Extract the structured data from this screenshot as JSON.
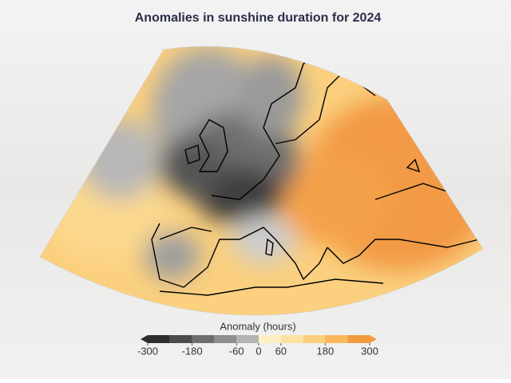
{
  "title": "Anomalies in sunshine duration for 2024",
  "legend": {
    "title": "Anomaly (hours)",
    "levels": [
      -300,
      -240,
      -180,
      -120,
      -60,
      0,
      60,
      120,
      180,
      240,
      300
    ],
    "colors": [
      "#2e2e2e",
      "#4d4d4d",
      "#6e6e6e",
      "#8f8f8f",
      "#b3b3b3",
      "#fdf0c4",
      "#fde2a0",
      "#fccf7c",
      "#f9b95a",
      "#f39c3e"
    ],
    "ticks": [
      -300,
      -180,
      -60,
      0,
      60,
      180,
      300
    ]
  }
}
